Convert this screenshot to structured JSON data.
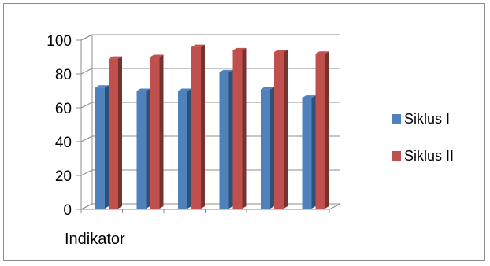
{
  "chart_data": {
    "type": "bar",
    "style": "3d-clustered-column",
    "categories": [
      "",
      "",
      "",
      "",
      "",
      ""
    ],
    "series": [
      {
        "name": "Siklus I",
        "color": "#4f81bd",
        "values": [
          72,
          70,
          70,
          81,
          71,
          66
        ]
      },
      {
        "name": "Siklus II",
        "color": "#c0504d",
        "values": [
          89,
          90,
          96,
          94,
          93,
          92
        ]
      }
    ],
    "xlabel": "Indikator",
    "ylabel": "",
    "ylim": [
      0,
      100
    ],
    "yticks": [
      0,
      20,
      40,
      60,
      80,
      100
    ],
    "grid": true,
    "legend": "right"
  }
}
